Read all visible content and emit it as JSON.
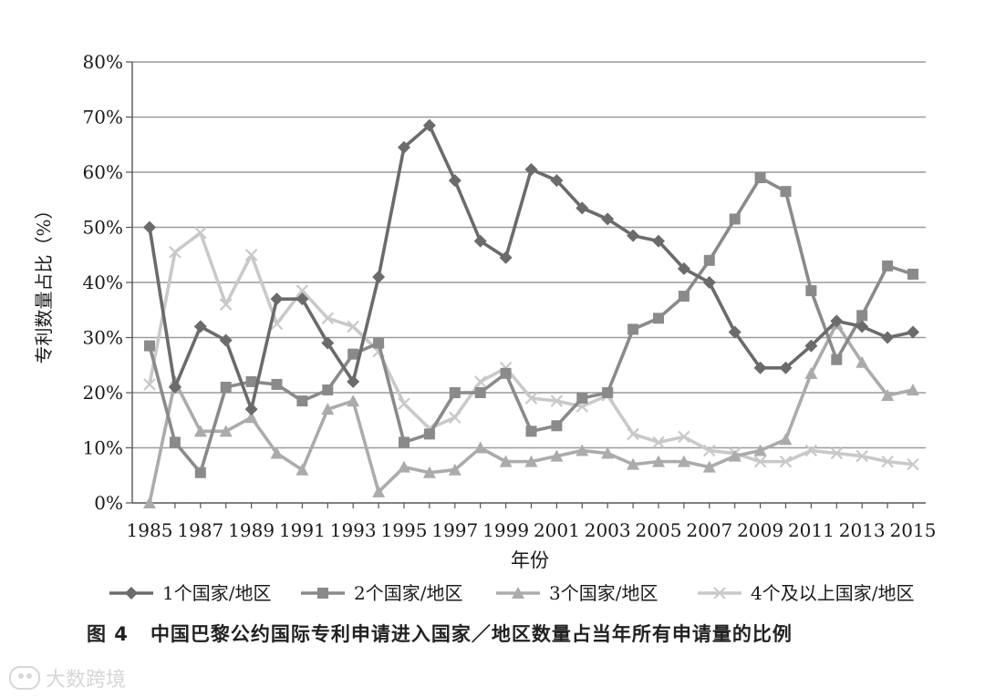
{
  "chart_data": {
    "type": "line",
    "xlabel": "年份",
    "ylabel": "专利数量占比（%）",
    "ylim": [
      0,
      80
    ],
    "yticks": [
      "0%",
      "10%",
      "20%",
      "30%",
      "40%",
      "50%",
      "60%",
      "70%",
      "80%"
    ],
    "xticks": [
      "1985",
      "1987",
      "1989",
      "1991",
      "1993",
      "1995",
      "1997",
      "1999",
      "2001",
      "2003",
      "2005",
      "2007",
      "2009",
      "2011",
      "2013",
      "2015"
    ],
    "x": [
      1985,
      1986,
      1987,
      1988,
      1989,
      1990,
      1991,
      1992,
      1993,
      1994,
      1995,
      1996,
      1997,
      1998,
      1999,
      2000,
      2001,
      2002,
      2003,
      2004,
      2005,
      2006,
      2007,
      2008,
      2009,
      2010,
      2011,
      2012,
      2013,
      2014,
      2015
    ],
    "grid": "horizontal",
    "legend": "bottom",
    "series": [
      {
        "name": "1个国家/地区",
        "marker": "diamond",
        "color": "#6b6b6b",
        "values": [
          50,
          21,
          32,
          29.5,
          17,
          37,
          37,
          29,
          22,
          41,
          64.5,
          68.5,
          58.5,
          47.5,
          44.5,
          60.5,
          58.5,
          53.5,
          51.5,
          48.5,
          47.5,
          42.5,
          40,
          31,
          24.5,
          24.5,
          28.5,
          33,
          32,
          30,
          31
        ]
      },
      {
        "name": "2个国家/地区",
        "marker": "square",
        "color": "#8a8a8a",
        "values": [
          28.5,
          11,
          5.5,
          21,
          22,
          21.5,
          18.5,
          20.5,
          27,
          29,
          11,
          12.5,
          20,
          20,
          23.5,
          13,
          14,
          19,
          20,
          31.5,
          33.5,
          37.5,
          44,
          51.5,
          59,
          56.5,
          38.5,
          26,
          34,
          43,
          41.5
        ]
      },
      {
        "name": "3个国家/地区",
        "marker": "triangle",
        "color": "#ababab",
        "values": [
          0,
          22,
          13,
          13,
          15.5,
          9,
          6,
          17,
          18.5,
          2,
          6.5,
          5.5,
          6,
          10,
          7.5,
          7.5,
          8.5,
          9.5,
          9,
          7,
          7.5,
          7.5,
          6.5,
          8.5,
          9.5,
          11.5,
          23.5,
          32.5,
          25.5,
          19.5,
          20.5
        ]
      },
      {
        "name": "4个及以上国家/地区",
        "marker": "x",
        "color": "#c9c9c9",
        "values": [
          21.5,
          45.5,
          49,
          36,
          45,
          32.5,
          38.5,
          33.5,
          32,
          27.5,
          18,
          13.5,
          15.5,
          22,
          24.5,
          19,
          18.5,
          17.5,
          19.5,
          12.5,
          11,
          12,
          9.5,
          9,
          7.5,
          7.5,
          9.5,
          9,
          8.5,
          7.5,
          7
        ]
      }
    ]
  },
  "caption": {
    "figure_no": "图 4",
    "text": "中国巴黎公约国际专利申请进入国家／地区数量占当年所有申请量的比例"
  },
  "watermark": {
    "text": "大数跨境"
  }
}
